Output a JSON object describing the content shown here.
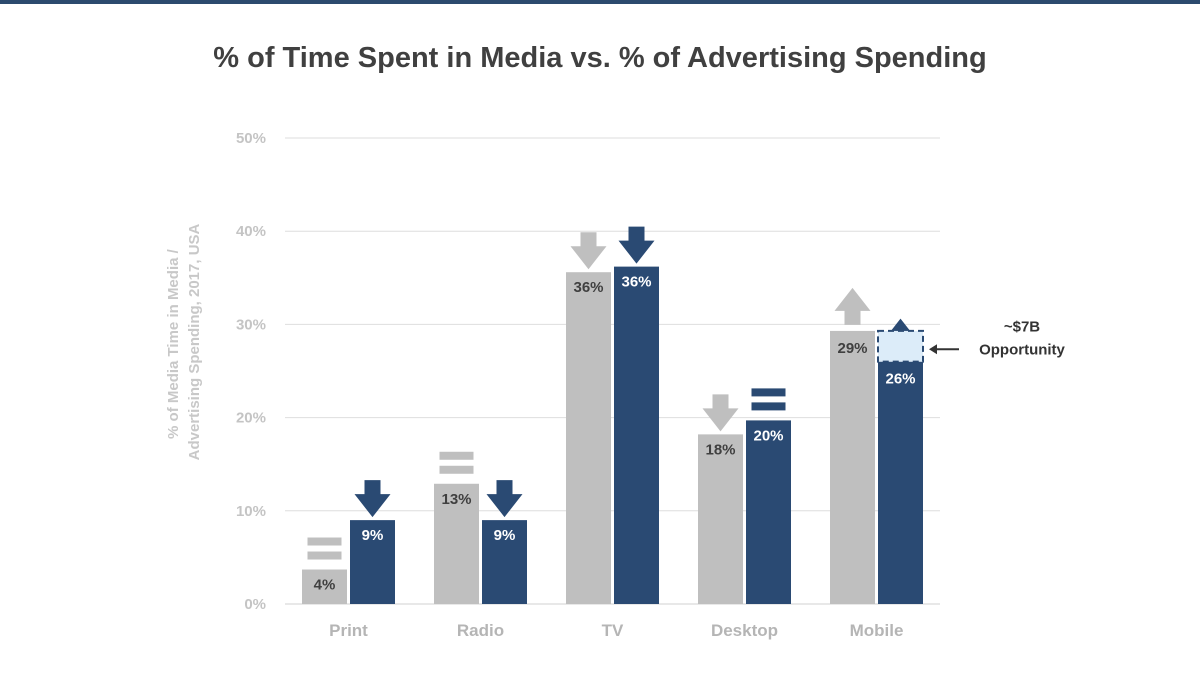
{
  "chart_data": {
    "type": "bar",
    "title": "% of Time Spent in Media vs. % of Advertising Spending",
    "ylabel_lines": [
      "% of Media Time in Media /",
      "Advertising Spending, 2017, USA"
    ],
    "ylim": [
      0,
      50
    ],
    "yticks": [
      "0%",
      "10%",
      "20%",
      "30%",
      "40%",
      "50%"
    ],
    "ytick_values": [
      0,
      10,
      20,
      30,
      40,
      50
    ],
    "grid": true,
    "categories": [
      "Print",
      "Radio",
      "TV",
      "Desktop",
      "Mobile"
    ],
    "series": [
      {
        "color": "#bfbfbf",
        "label_color": "#404040",
        "values": [
          3.7,
          12.9,
          35.6,
          18.2,
          29.3
        ],
        "labels": [
          "4%",
          "13%",
          "36%",
          "18%",
          "29%"
        ],
        "trend": [
          "equal",
          "equal",
          "down",
          "down",
          "up"
        ]
      },
      {
        "color": "#2a4a73",
        "label_color": "#ffffff",
        "values": [
          9.0,
          9.0,
          36.2,
          19.7,
          26.0
        ],
        "labels": [
          "9%",
          "9%",
          "36%",
          "20%",
          "26%"
        ],
        "trend": [
          "down",
          "down",
          "down",
          "equal",
          "up"
        ]
      }
    ],
    "annotation": {
      "category": "Mobile",
      "from": 26,
      "to": 29.3,
      "box_color": "#dcecf9",
      "border_color": "#2a4a73",
      "lines": [
        "~$7B",
        "Opportunity"
      ]
    }
  }
}
